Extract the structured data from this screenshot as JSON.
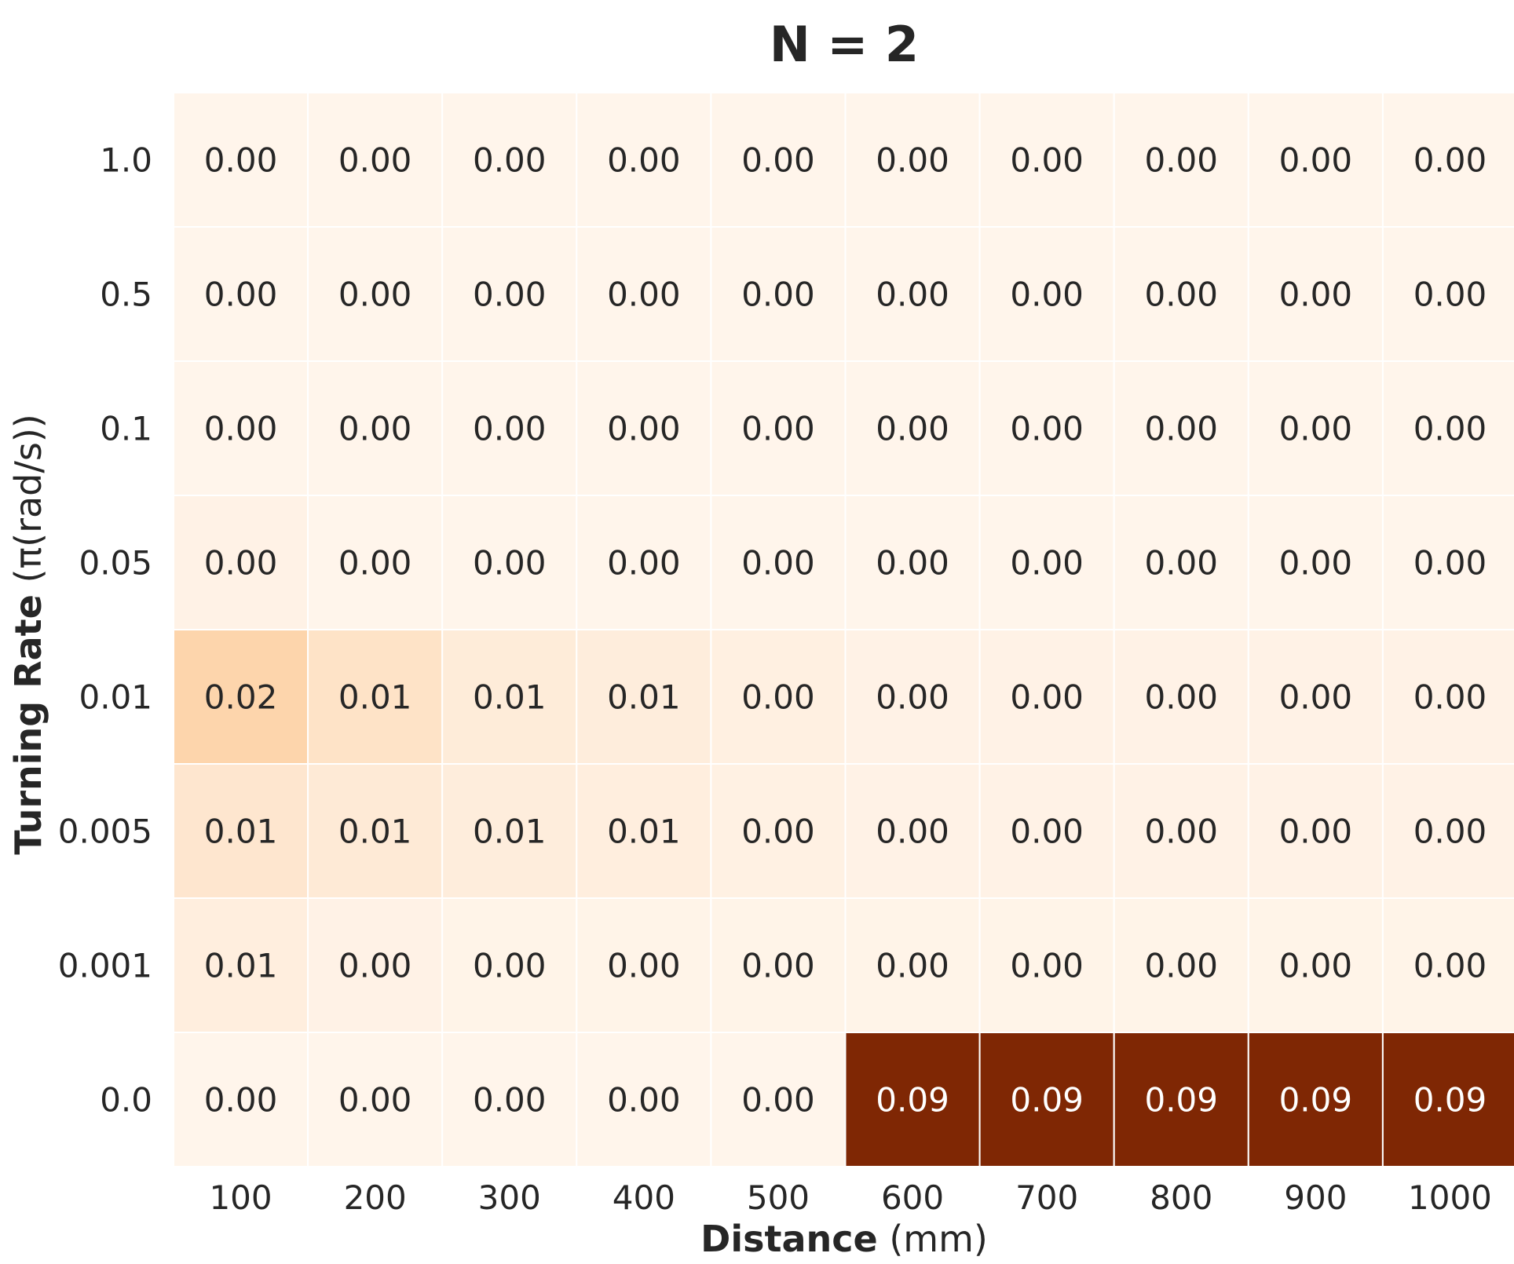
{
  "chart_data": {
    "type": "heatmap",
    "title": "N = 2",
    "xlabel": {
      "bold": "Distance",
      "unit": " (mm)"
    },
    "ylabel": {
      "bold": "Turning Rate",
      "unit": " (π(rad/s))"
    },
    "x_categories": [
      "100",
      "200",
      "300",
      "400",
      "500",
      "600",
      "700",
      "800",
      "900",
      "1000"
    ],
    "y_categories": [
      "1.0",
      "0.5",
      "0.1",
      "0.05",
      "0.01",
      "0.005",
      "0.001",
      "0.0"
    ],
    "values": [
      [
        0.0,
        0.0,
        0.0,
        0.0,
        0.0,
        0.0,
        0.0,
        0.0,
        0.0,
        0.0
      ],
      [
        0.0,
        0.0,
        0.0,
        0.0,
        0.0,
        0.0,
        0.0,
        0.0,
        0.0,
        0.0
      ],
      [
        0.0,
        0.0,
        0.0,
        0.0,
        0.0,
        0.0,
        0.0,
        0.0,
        0.0,
        0.0
      ],
      [
        0.002,
        0.0,
        0.0,
        0.0,
        0.0,
        0.0,
        0.0,
        0.0,
        0.0,
        0.0
      ],
      [
        0.02,
        0.013,
        0.007,
        0.006,
        0.004,
        0.002,
        0.002,
        0.002,
        0.002,
        0.002
      ],
      [
        0.011,
        0.008,
        0.006,
        0.005,
        0.003,
        0.002,
        0.002,
        0.002,
        0.002,
        0.002
      ],
      [
        0.005,
        0.002,
        0.001,
        0.001,
        0.001,
        0.001,
        0.001,
        0.001,
        0.001,
        0.001
      ],
      [
        0.0,
        0.0,
        0.0,
        0.0,
        0.0,
        0.09,
        0.09,
        0.09,
        0.09,
        0.09
      ]
    ],
    "labels": [
      [
        "0.00",
        "0.00",
        "0.00",
        "0.00",
        "0.00",
        "0.00",
        "0.00",
        "0.00",
        "0.00",
        "0.00"
      ],
      [
        "0.00",
        "0.00",
        "0.00",
        "0.00",
        "0.00",
        "0.00",
        "0.00",
        "0.00",
        "0.00",
        "0.00"
      ],
      [
        "0.00",
        "0.00",
        "0.00",
        "0.00",
        "0.00",
        "0.00",
        "0.00",
        "0.00",
        "0.00",
        "0.00"
      ],
      [
        "0.00",
        "0.00",
        "0.00",
        "0.00",
        "0.00",
        "0.00",
        "0.00",
        "0.00",
        "0.00",
        "0.00"
      ],
      [
        "0.02",
        "0.01",
        "0.01",
        "0.01",
        "0.00",
        "0.00",
        "0.00",
        "0.00",
        "0.00",
        "0.00"
      ],
      [
        "0.01",
        "0.01",
        "0.01",
        "0.01",
        "0.00",
        "0.00",
        "0.00",
        "0.00",
        "0.00",
        "0.00"
      ],
      [
        "0.01",
        "0.00",
        "0.00",
        "0.00",
        "0.00",
        "0.00",
        "0.00",
        "0.00",
        "0.00",
        "0.00"
      ],
      [
        "0.00",
        "0.00",
        "0.00",
        "0.00",
        "0.00",
        "0.09",
        "0.09",
        "0.09",
        "0.09",
        "0.09"
      ]
    ],
    "value_range": [
      0,
      0.09
    ],
    "colormap": [
      "#fff5eb",
      "#fee6ce",
      "#fdd0a2",
      "#fdae6b",
      "#fd8d3c",
      "#f16913",
      "#d94801",
      "#a63603",
      "#7f2704"
    ],
    "colorbar": false,
    "grid": false
  }
}
